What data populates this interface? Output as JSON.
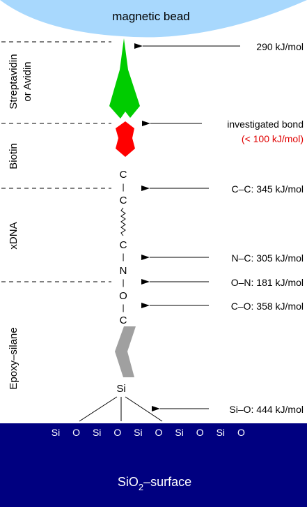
{
  "bead_label": "magnetic bead",
  "section_labels": {
    "streptavidin": [
      "Streptavidin",
      "or Avidin"
    ],
    "biotin": "Biotin",
    "xdna": "xDNA",
    "epoxy": "Epoxy–silane"
  },
  "annotations": {
    "top": "290 kJ/mol",
    "investigated": "investigated bond",
    "investigated_value": "(< 100 kJ/mol)",
    "cc": "C–C: 345 kJ/mol",
    "nc": "N–C: 305 kJ/mol",
    "on": "O–N: 181 kJ/mol",
    "co": "C–O: 358 kJ/mol",
    "sio": "Si–O: 444 kJ/mol"
  },
  "chain": {
    "c1": "C",
    "dash1": "|",
    "c2": "C",
    "c3": "C",
    "dash3": "|",
    "n": "N",
    "dash4": "|",
    "o": "O",
    "dash5": "|",
    "c4": "C",
    "si": "Si"
  },
  "surface_atoms": [
    "Si",
    "O",
    "Si",
    "O",
    "Si",
    "O",
    "Si",
    "O",
    "Si",
    "O"
  ],
  "surface_label": {
    "main": "SiO",
    "sub": "2",
    "rest": "–surface"
  },
  "colors": {
    "bead": "#a8d8fd",
    "streptavidin": "#00cc00",
    "biotin": "#ff0000",
    "epoxy": "#a0a0a0",
    "surface": "#000080",
    "highlight": "#e00000"
  }
}
